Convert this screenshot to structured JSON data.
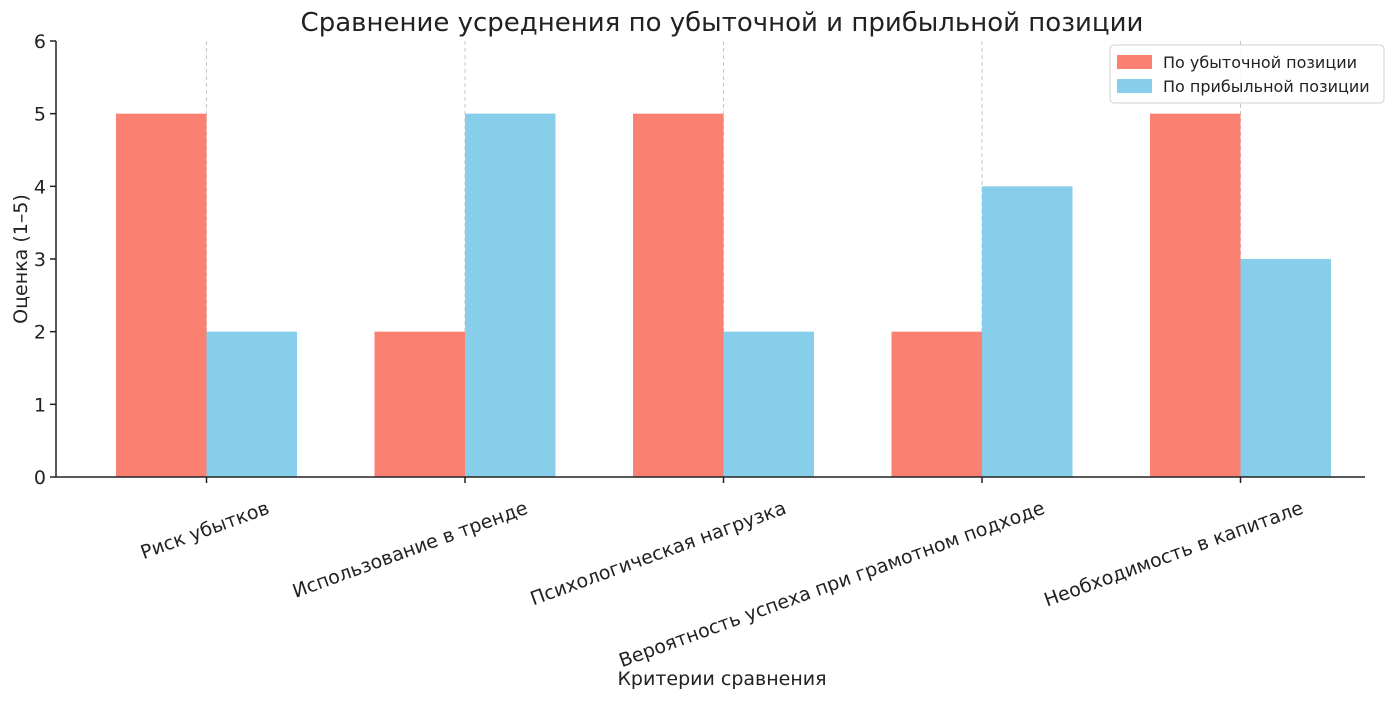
{
  "chart_data": {
    "type": "bar",
    "title": "Сравнение усреднения по убыточной и прибыльной позиции",
    "xlabel": "Критерии сравнения",
    "ylabel": "Оценка (1–5)",
    "ylim": [
      0,
      6
    ],
    "yticks": [
      "0",
      "1",
      "2",
      "3",
      "4",
      "5",
      "6"
    ],
    "categories": [
      "Риск убытков",
      "Использование в тренде",
      "Психологическая нагрузка",
      "Вероятность успеха при грамотном подходе",
      "Необходимость в капитале"
    ],
    "series": [
      {
        "name": "По убыточной позиции",
        "color": "#fa8072",
        "values": [
          5,
          2,
          5,
          2,
          5
        ]
      },
      {
        "name": "По прибыльной позиции",
        "color": "#87ceeb",
        "values": [
          2,
          5,
          2,
          4,
          3
        ]
      }
    ],
    "grid": "x-dashed",
    "legend_position": "top-right"
  }
}
